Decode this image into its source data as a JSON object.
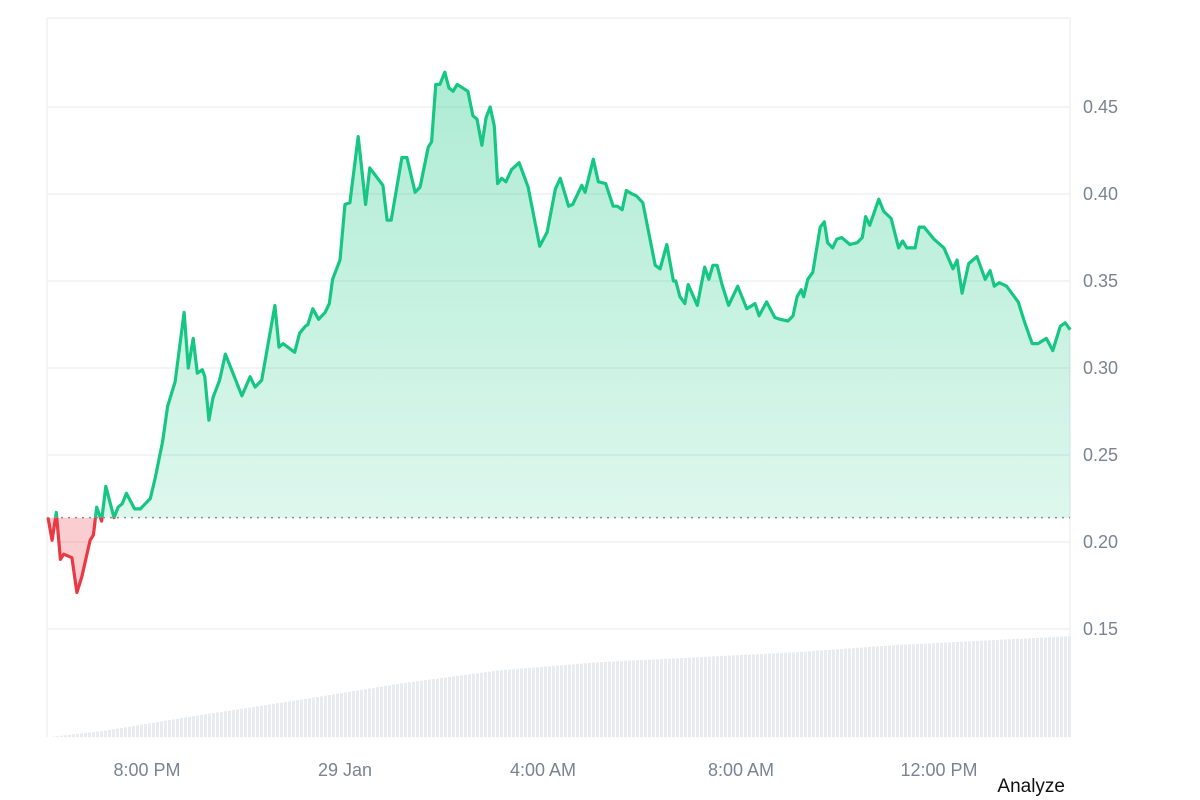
{
  "chart_data": {
    "type": "area",
    "title": "",
    "xlabel": "",
    "ylabel": "",
    "x_ticks": [
      "8:00 PM",
      "29 Jan",
      "4:00 AM",
      "8:00 AM",
      "12:00 PM"
    ],
    "y_ticks": [
      "0.45",
      "0.40",
      "0.35",
      "0.30",
      "0.25",
      "0.20",
      "0.15"
    ],
    "ylim": [
      0.15,
      0.47
    ],
    "xlim": [
      "28 Jan 18:00",
      "29 Jan 14:40"
    ],
    "grid": true,
    "baseline": 0.214,
    "colors": {
      "up": "#16c784",
      "down": "#ea3943",
      "volume": "#e8ecf1",
      "grid": "#eef0f3",
      "tick": "#7b8393"
    },
    "series": [
      {
        "points": [
          [
            "28 Jan 18:00",
            0.214
          ],
          [
            "28 Jan 18:05",
            0.201
          ],
          [
            "28 Jan 18:10",
            0.217
          ],
          [
            "28 Jan 18:15",
            0.19
          ],
          [
            "28 Jan 18:19",
            0.193
          ],
          [
            "28 Jan 18:29",
            0.191
          ],
          [
            "28 Jan 18:35",
            0.171
          ],
          [
            "28 Jan 18:41",
            0.18
          ],
          [
            "28 Jan 18:51",
            0.201
          ],
          [
            "28 Jan 18:55",
            0.204
          ],
          [
            "28 Jan 18:59",
            0.22
          ],
          [
            "28 Jan 19:05",
            0.212
          ],
          [
            "28 Jan 19:10",
            0.232
          ],
          [
            "28 Jan 19:20",
            0.214
          ],
          [
            "28 Jan 19:25",
            0.22
          ],
          [
            "28 Jan 19:30",
            0.222
          ],
          [
            "28 Jan 19:35",
            0.228
          ],
          [
            "28 Jan 19:45",
            0.219
          ],
          [
            "28 Jan 19:52",
            0.219
          ],
          [
            "28 Jan 19:58",
            0.222
          ],
          [
            "28 Jan 20:04",
            0.225
          ],
          [
            "28 Jan 20:10",
            0.237
          ],
          [
            "28 Jan 20:19",
            0.258
          ],
          [
            "28 Jan 20:25",
            0.278
          ],
          [
            "28 Jan 20:34",
            0.292
          ],
          [
            "28 Jan 20:45",
            0.332
          ],
          [
            "28 Jan 20:50",
            0.3
          ],
          [
            "28 Jan 20:56",
            0.317
          ],
          [
            "28 Jan 21:01",
            0.297
          ],
          [
            "28 Jan 21:07",
            0.299
          ],
          [
            "28 Jan 21:10",
            0.295
          ],
          [
            "28 Jan 21:15",
            0.27
          ],
          [
            "28 Jan 21:20",
            0.283
          ],
          [
            "28 Jan 21:28",
            0.293
          ],
          [
            "28 Jan 21:35",
            0.308
          ],
          [
            "28 Jan 21:55",
            0.284
          ],
          [
            "28 Jan 22:05",
            0.295
          ],
          [
            "28 Jan 22:11",
            0.289
          ],
          [
            "28 Jan 22:19",
            0.293
          ],
          [
            "28 Jan 22:35",
            0.336
          ],
          [
            "28 Jan 22:40",
            0.312
          ],
          [
            "28 Jan 22:45",
            0.314
          ],
          [
            "28 Jan 22:59",
            0.309
          ],
          [
            "28 Jan 23:05",
            0.32
          ],
          [
            "28 Jan 23:12",
            0.324
          ],
          [
            "28 Jan 23:15",
            0.325
          ],
          [
            "28 Jan 23:21",
            0.334
          ],
          [
            "28 Jan 23:28",
            0.328
          ],
          [
            "28 Jan 23:36",
            0.332
          ],
          [
            "28 Jan 23:41",
            0.337
          ],
          [
            "28 Jan 23:45",
            0.351
          ],
          [
            "28 Jan 23:54",
            0.362
          ],
          [
            "29 Jan 00:00",
            0.394
          ],
          [
            "29 Jan 00:06",
            0.395
          ],
          [
            "29 Jan 00:16",
            0.433
          ],
          [
            "29 Jan 00:25",
            0.394
          ],
          [
            "29 Jan 00:30",
            0.415
          ],
          [
            "29 Jan 00:46",
            0.405
          ],
          [
            "29 Jan 00:51",
            0.385
          ],
          [
            "29 Jan 00:56",
            0.385
          ],
          [
            "29 Jan 01:09",
            0.421
          ],
          [
            "29 Jan 01:15",
            0.421
          ],
          [
            "29 Jan 01:25",
            0.401
          ],
          [
            "29 Jan 01:31",
            0.404
          ],
          [
            "29 Jan 01:41",
            0.427
          ],
          [
            "29 Jan 01:45",
            0.43
          ],
          [
            "29 Jan 01:50",
            0.463
          ],
          [
            "29 Jan 01:55",
            0.463
          ],
          [
            "29 Jan 02:01",
            0.47
          ],
          [
            "29 Jan 02:06",
            0.461
          ],
          [
            "29 Jan 02:11",
            0.459
          ],
          [
            "29 Jan 02:16",
            0.463
          ],
          [
            "29 Jan 02:29",
            0.459
          ],
          [
            "29 Jan 02:35",
            0.445
          ],
          [
            "29 Jan 02:40",
            0.443
          ],
          [
            "29 Jan 02:46",
            0.428
          ],
          [
            "29 Jan 02:51",
            0.444
          ],
          [
            "29 Jan 02:56",
            0.45
          ],
          [
            "29 Jan 03:01",
            0.439
          ],
          [
            "29 Jan 03:05",
            0.406
          ],
          [
            "29 Jan 03:10",
            0.409
          ],
          [
            "29 Jan 03:15",
            0.407
          ],
          [
            "29 Jan 03:22",
            0.414
          ],
          [
            "29 Jan 03:31",
            0.418
          ],
          [
            "29 Jan 03:42",
            0.404
          ],
          [
            "29 Jan 03:56",
            0.37
          ],
          [
            "29 Jan 04:05",
            0.378
          ],
          [
            "29 Jan 04:15",
            0.403
          ],
          [
            "29 Jan 04:21",
            0.409
          ],
          [
            "29 Jan 04:31",
            0.393
          ],
          [
            "29 Jan 04:36",
            0.394
          ],
          [
            "29 Jan 04:47",
            0.405
          ],
          [
            "29 Jan 04:51",
            0.401
          ],
          [
            "29 Jan 05:01",
            0.42
          ],
          [
            "29 Jan 05:07",
            0.407
          ],
          [
            "29 Jan 05:16",
            0.406
          ],
          [
            "29 Jan 05:25",
            0.393
          ],
          [
            "29 Jan 05:30",
            0.393
          ],
          [
            "29 Jan 05:36",
            0.391
          ],
          [
            "29 Jan 05:41",
            0.402
          ],
          [
            "29 Jan 05:48",
            0.4
          ],
          [
            "29 Jan 05:53",
            0.399
          ],
          [
            "29 Jan 06:01",
            0.395
          ],
          [
            "29 Jan 06:16",
            0.359
          ],
          [
            "29 Jan 06:22",
            0.357
          ],
          [
            "29 Jan 06:30",
            0.371
          ],
          [
            "29 Jan 06:38",
            0.35
          ],
          [
            "29 Jan 06:41",
            0.35
          ],
          [
            "29 Jan 06:46",
            0.341
          ],
          [
            "29 Jan 06:52",
            0.337
          ],
          [
            "29 Jan 06:56",
            0.348
          ],
          [
            "29 Jan 07:07",
            0.336
          ],
          [
            "29 Jan 07:16",
            0.358
          ],
          [
            "29 Jan 07:21",
            0.351
          ],
          [
            "29 Jan 07:26",
            0.359
          ],
          [
            "29 Jan 07:31",
            0.359
          ],
          [
            "29 Jan 07:37",
            0.348
          ],
          [
            "29 Jan 07:45",
            0.336
          ],
          [
            "29 Jan 07:56",
            0.347
          ],
          [
            "29 Jan 08:07",
            0.334
          ],
          [
            "29 Jan 08:17",
            0.337
          ],
          [
            "29 Jan 08:22",
            0.33
          ],
          [
            "29 Jan 08:31",
            0.338
          ],
          [
            "29 Jan 08:41",
            0.329
          ],
          [
            "29 Jan 08:47",
            0.328
          ],
          [
            "29 Jan 08:57",
            0.327
          ],
          [
            "29 Jan 09:03",
            0.33
          ],
          [
            "29 Jan 09:08",
            0.341
          ],
          [
            "29 Jan 09:13",
            0.345
          ],
          [
            "29 Jan 09:16",
            0.341
          ],
          [
            "29 Jan 09:21",
            0.351
          ],
          [
            "29 Jan 09:27",
            0.355
          ],
          [
            "29 Jan 09:36",
            0.381
          ],
          [
            "29 Jan 09:41",
            0.384
          ],
          [
            "29 Jan 09:45",
            0.372
          ],
          [
            "29 Jan 09:51",
            0.369
          ],
          [
            "29 Jan 09:56",
            0.374
          ],
          [
            "29 Jan 10:02",
            0.375
          ],
          [
            "29 Jan 10:12",
            0.371
          ],
          [
            "29 Jan 10:21",
            0.372
          ],
          [
            "29 Jan 10:27",
            0.375
          ],
          [
            "29 Jan 10:31",
            0.387
          ],
          [
            "29 Jan 10:36",
            0.382
          ],
          [
            "29 Jan 10:47",
            0.397
          ],
          [
            "29 Jan 10:53",
            0.39
          ],
          [
            "29 Jan 11:02",
            0.386
          ],
          [
            "29 Jan 11:11",
            0.369
          ],
          [
            "29 Jan 11:16",
            0.373
          ],
          [
            "29 Jan 11:21",
            0.369
          ],
          [
            "29 Jan 11:31",
            0.369
          ],
          [
            "29 Jan 11:36",
            0.381
          ],
          [
            "29 Jan 11:42",
            0.381
          ],
          [
            "29 Jan 11:54",
            0.374
          ],
          [
            "29 Jan 12:06",
            0.369
          ],
          [
            "29 Jan 12:17",
            0.357
          ],
          [
            "29 Jan 12:22",
            0.362
          ],
          [
            "29 Jan 12:28",
            0.343
          ],
          [
            "29 Jan 12:36",
            0.36
          ],
          [
            "29 Jan 12:46",
            0.364
          ],
          [
            "29 Jan 12:56",
            0.351
          ],
          [
            "29 Jan 13:02",
            0.356
          ],
          [
            "29 Jan 13:07",
            0.347
          ],
          [
            "29 Jan 13:13",
            0.349
          ],
          [
            "29 Jan 13:22",
            0.347
          ],
          [
            "29 Jan 13:36",
            0.338
          ],
          [
            "29 Jan 13:44",
            0.326
          ],
          [
            "29 Jan 13:53",
            0.314
          ],
          [
            "29 Jan 14:00",
            0.314
          ],
          [
            "29 Jan 14:10",
            0.317
          ],
          [
            "29 Jan 14:18",
            0.31
          ],
          [
            "29 Jan 14:27",
            0.324
          ],
          [
            "29 Jan 14:33",
            0.326
          ],
          [
            "29 Jan 14:39",
            0.322
          ]
        ]
      }
    ],
    "volume_relative": [
      [
        "28 Jan 18:00",
        0.0
      ],
      [
        "28 Jan 19:05",
        0.06
      ],
      [
        "28 Jan 21:05",
        0.22
      ],
      [
        "28 Jan 23:05",
        0.37
      ],
      [
        "29 Jan 01:05",
        0.53
      ],
      [
        "29 Jan 03:05",
        0.66
      ],
      [
        "29 Jan 05:05",
        0.74
      ],
      [
        "29 Jan 07:05",
        0.79
      ],
      [
        "29 Jan 09:05",
        0.84
      ],
      [
        "29 Jan 11:05",
        0.91
      ],
      [
        "29 Jan 13:05",
        0.96
      ],
      [
        "29 Jan 14:40",
        1.0
      ]
    ]
  },
  "footer": {
    "analyze_label": "Analyze"
  }
}
